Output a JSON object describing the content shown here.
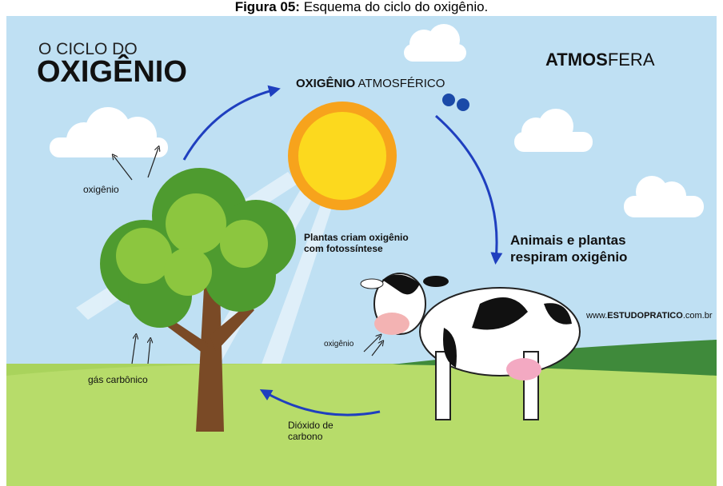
{
  "caption": {
    "label": "Figura 05:",
    "text": "Esquema do ciclo do oxigênio."
  },
  "header": {
    "pre_title": "O CICLO DO",
    "title": "OXIGÊNIO"
  },
  "corner_label": {
    "bold": "ATMOS",
    "light": "FERA"
  },
  "atmospheric_oxygen": {
    "bold": "OXIGÊNIO",
    "light": "ATMOSFÉRICO"
  },
  "labels": {
    "tree_oxygen": "oxigênio",
    "photosynthesis": [
      "Plantas criam oxigênio",
      "com fotossíntese"
    ],
    "respiration": [
      "Animais e plantas",
      "respiram oxigênio"
    ],
    "website": {
      "pre": "www.",
      "bold": "ESTUDOPRATICO",
      "post": ".com.br"
    },
    "cow_oxygen": "oxigênio",
    "carbon_gas": "gás carbônico",
    "carbon_dioxide": [
      "Dióxido de",
      "carbono"
    ]
  }
}
